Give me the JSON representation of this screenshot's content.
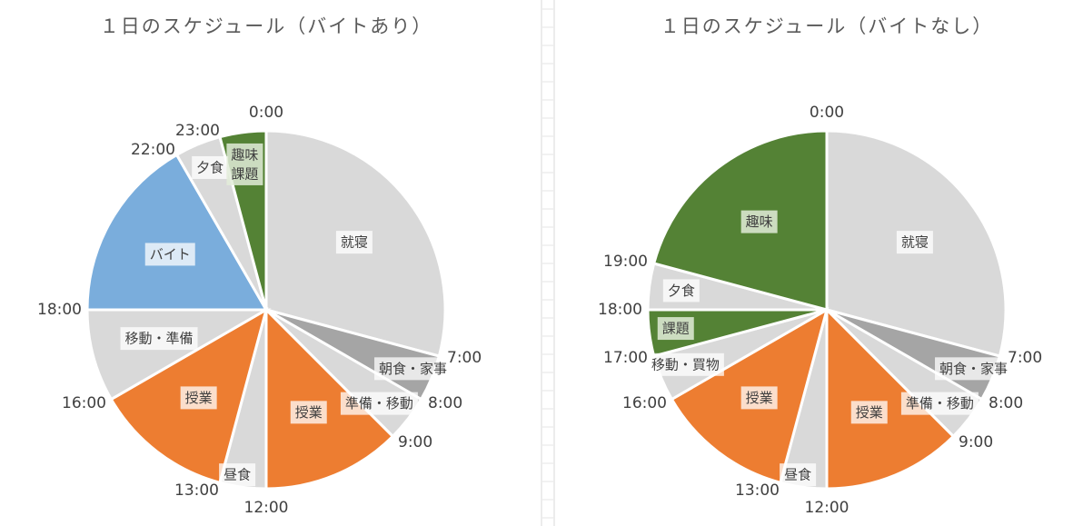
{
  "chart_data": [
    {
      "type": "pie",
      "title": "１日のスケジュール（バイトあり）",
      "unit": "hours",
      "start_angle": "top",
      "direction": "clockwise",
      "slices": [
        {
          "label": "就寝",
          "start": 0,
          "end": 7,
          "color": "#d9d9d9"
        },
        {
          "label": "朝食・家事",
          "start": 7,
          "end": 8,
          "color": "#a5a5a5"
        },
        {
          "label": "準備・移動",
          "start": 8,
          "end": 9,
          "color": "#d9d9d9"
        },
        {
          "label": "授業",
          "start": 9,
          "end": 12,
          "color": "#ed7d31"
        },
        {
          "label": "昼食",
          "start": 12,
          "end": 13,
          "color": "#d9d9d9"
        },
        {
          "label": "授業",
          "start": 13,
          "end": 16,
          "color": "#ed7d31"
        },
        {
          "label": "移動・準備",
          "start": 16,
          "end": 18,
          "color": "#d9d9d9"
        },
        {
          "label": "バイト",
          "start": 18,
          "end": 22,
          "color": "#7aaddc"
        },
        {
          "label": "夕食",
          "start": 22,
          "end": 23,
          "color": "#d9d9d9"
        },
        {
          "label": "趣味\n課題",
          "start": 23,
          "end": 24,
          "color": "#548235"
        }
      ],
      "time_labels": [
        "0:00",
        "7:00",
        "8:00",
        "9:00",
        "12:00",
        "13:00",
        "16:00",
        "18:00",
        "22:00",
        "23:00"
      ]
    },
    {
      "type": "pie",
      "title": "１日のスケジュール（バイトなし）",
      "unit": "hours",
      "start_angle": "top",
      "direction": "clockwise",
      "slices": [
        {
          "label": "就寝",
          "start": 0,
          "end": 7,
          "color": "#d9d9d9"
        },
        {
          "label": "朝食・家事",
          "start": 7,
          "end": 8,
          "color": "#a5a5a5"
        },
        {
          "label": "準備・移動",
          "start": 8,
          "end": 9,
          "color": "#d9d9d9"
        },
        {
          "label": "授業",
          "start": 9,
          "end": 12,
          "color": "#ed7d31"
        },
        {
          "label": "昼食",
          "start": 12,
          "end": 13,
          "color": "#d9d9d9"
        },
        {
          "label": "授業",
          "start": 13,
          "end": 16,
          "color": "#ed7d31"
        },
        {
          "label": "移動・買物",
          "start": 16,
          "end": 17,
          "color": "#d9d9d9"
        },
        {
          "label": "課題",
          "start": 17,
          "end": 18,
          "color": "#548235"
        },
        {
          "label": "夕食",
          "start": 18,
          "end": 19,
          "color": "#d9d9d9"
        },
        {
          "label": "趣味",
          "start": 19,
          "end": 24,
          "color": "#548235"
        }
      ],
      "time_labels": [
        "0:00",
        "7:00",
        "8:00",
        "9:00",
        "12:00",
        "13:00",
        "16:00",
        "17:00",
        "18:00",
        "19:00"
      ]
    }
  ]
}
